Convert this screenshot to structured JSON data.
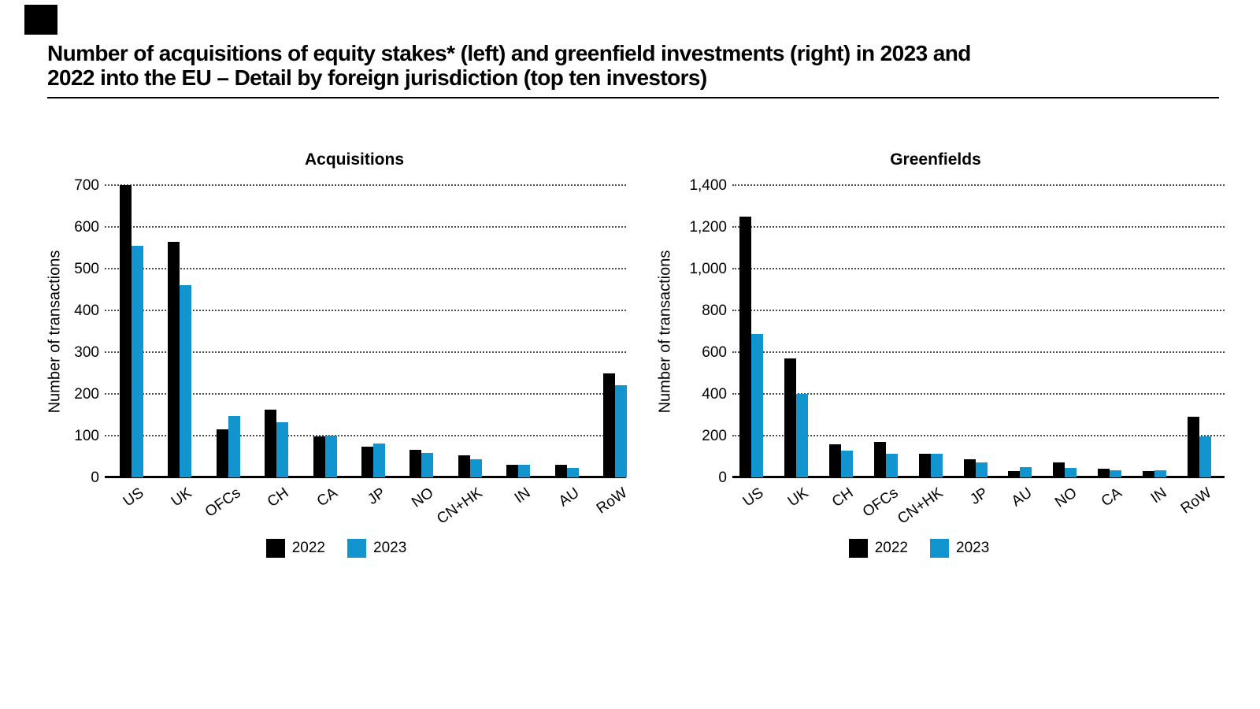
{
  "header": {
    "title_line1": "Number of acquisitions of equity stakes* (left) and greenfield investments (right) in 2023 and",
    "title_line2": "2022 into the EU – Detail by foreign jurisdiction (top ten investors)",
    "logo": "black-square-mark"
  },
  "colors": {
    "series_2022": "#000000",
    "series_2023": "#1295CF",
    "grid": "#4d4d4d",
    "axis": "#000000"
  },
  "chart_data": [
    {
      "type": "bar",
      "title": "Acquisitions",
      "ylabel": "Number of transactions",
      "xlabel": "",
      "ylim": [
        0,
        700
      ],
      "ytick_step": 100,
      "grid": "dotted-horizontal",
      "legend_position": "bottom-center",
      "categories": [
        "US",
        "UK",
        "OFCs",
        "CH",
        "CA",
        "JP",
        "NO",
        "CN+HK",
        "IN",
        "AU",
        "RoW"
      ],
      "series": [
        {
          "name": "2022",
          "color_key": "series_2022",
          "values": [
            700,
            565,
            116,
            162,
            98,
            74,
            66,
            52,
            30,
            30,
            250
          ]
        },
        {
          "name": "2023",
          "color_key": "series_2023",
          "values": [
            555,
            460,
            147,
            133,
            100,
            81,
            58,
            44,
            30,
            22,
            220
          ]
        }
      ]
    },
    {
      "type": "bar",
      "title": "Greenfields",
      "ylabel": "Number of transactions",
      "xlabel": "",
      "ylim": [
        0,
        1400
      ],
      "ytick_step": 200,
      "grid": "dotted-horizontal",
      "legend_position": "bottom-center",
      "categories": [
        "US",
        "UK",
        "CH",
        "OFCs",
        "CN+HK",
        "JP",
        "AU",
        "NO",
        "CA",
        "IN",
        "RoW"
      ],
      "series": [
        {
          "name": "2022",
          "color_key": "series_2022",
          "values": [
            1250,
            570,
            158,
            168,
            112,
            86,
            32,
            73,
            42,
            32,
            290
          ]
        },
        {
          "name": "2023",
          "color_key": "series_2023",
          "values": [
            685,
            400,
            128,
            112,
            112,
            70,
            50,
            45,
            34,
            34,
            198
          ]
        }
      ]
    }
  ]
}
